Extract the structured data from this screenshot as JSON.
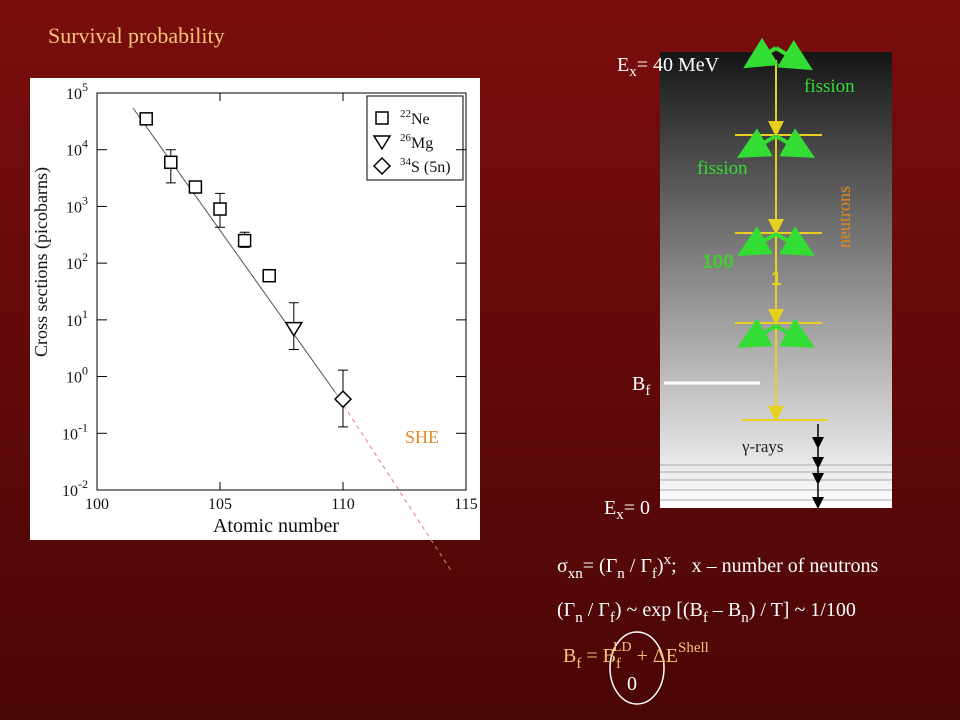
{
  "chart_data": {
    "type": "scatter",
    "title": "Survival probability",
    "xlabel": "Atomic number",
    "ylabel": "Cross sections (picobarns)",
    "xlim": [
      100,
      115
    ],
    "xticks": [
      100,
      105,
      110,
      115
    ],
    "ylim": [
      0.01,
      100000
    ],
    "ylog": true,
    "yticks": [
      {
        "value": 0.01,
        "label": "10",
        "exponent": "-2"
      },
      {
        "value": 0.1,
        "label": "10",
        "exponent": "-1"
      },
      {
        "value": 1,
        "label": "10",
        "exponent": "0"
      },
      {
        "value": 10,
        "label": "10",
        "exponent": "1"
      },
      {
        "value": 100,
        "label": "10",
        "exponent": "2"
      },
      {
        "value": 1000,
        "label": "10",
        "exponent": "3"
      },
      {
        "value": 10000,
        "label": "10",
        "exponent": "4"
      },
      {
        "value": 100000,
        "label": "10",
        "exponent": "5"
      }
    ],
    "series": [
      {
        "name": "Ne",
        "isotope": "22",
        "marker": "square",
        "color": "#ffffff",
        "x": [
          102,
          103,
          104,
          105,
          106,
          107
        ],
        "values": [
          35000,
          6000,
          2200,
          900,
          250,
          60
        ],
        "err_low": [
          null,
          2600,
          null,
          430,
          190,
          null
        ],
        "err_high": [
          null,
          10000,
          null,
          1700,
          350,
          null
        ]
      },
      {
        "name": "Mg",
        "isotope": "26",
        "marker": "triangle",
        "color": "#ffffff",
        "x": [
          108
        ],
        "values": [
          7
        ],
        "err_low": [
          3
        ],
        "err_high": [
          20
        ]
      },
      {
        "name": "S (5n)",
        "isotope": "34",
        "marker": "diamond",
        "color": "#ffffff",
        "x": [
          110
        ],
        "values": [
          0.4
        ],
        "err_low": [
          0.13
        ],
        "err_high": [
          1.3
        ]
      }
    ],
    "annotation": "SHE"
  },
  "diagram": {
    "excited": [
      "E",
      "x",
      "= 40 MeV"
    ],
    "fission_top": "fission",
    "fission_mid": "fission",
    "neutrons": "neutrons",
    "count_100": "100",
    "count_1": "1",
    "barrier": [
      "B",
      "f"
    ],
    "gamma": "γ-rays",
    "ground": [
      "E",
      "x",
      "= 0"
    ]
  },
  "formulas": [
    [
      "σ",
      "xn",
      "= (Γ",
      "n",
      " / Γ",
      "f",
      ")",
      "x",
      ";   x – number of neutrons"
    ],
    [
      "(Γ",
      "n",
      " / Γ",
      "f",
      ") ~ exp [(B",
      "f",
      " – B",
      "n",
      ") / T] ~ 1/100"
    ],
    [
      "B",
      "f",
      " = B",
      "f",
      "LD",
      " + ΔE",
      "Shell"
    ]
  ],
  "formula_note": "0"
}
